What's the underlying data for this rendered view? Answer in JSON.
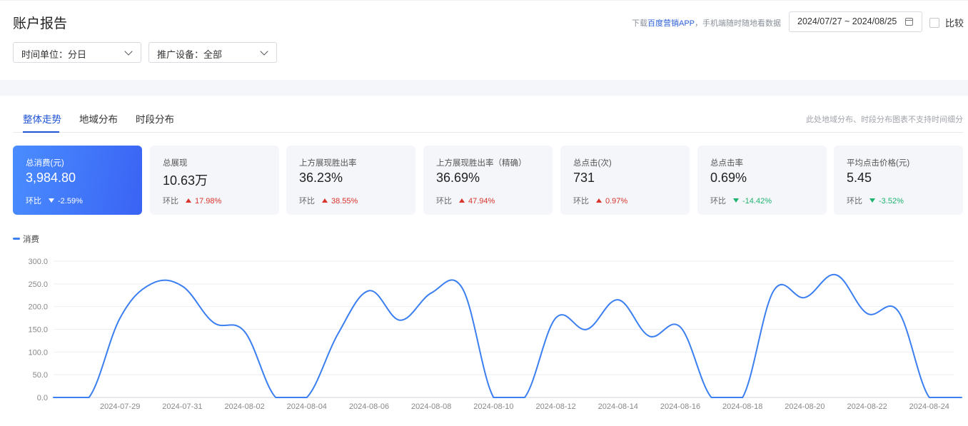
{
  "header": {
    "title": "账户报告",
    "app_tip_prefix": "下载",
    "app_tip_link": "百度营销APP",
    "app_tip_suffix": "，手机端随时随地看数据",
    "date_range": "2024/07/27 ~ 2024/08/25",
    "compare_label": "比较"
  },
  "filters": {
    "time_unit": "时间单位：分日",
    "device": "推广设备：全部"
  },
  "tabs": {
    "items": [
      "整体走势",
      "地域分布",
      "时段分布"
    ],
    "note": "此处地域分布、时段分布图表不支持时间细分"
  },
  "metrics": [
    {
      "label": "总消费(元)",
      "value": "3,984.80",
      "cmp_label": "环比",
      "change": "-2.59%",
      "direction": "down"
    },
    {
      "label": "总展现",
      "value": "10.63万",
      "cmp_label": "环比",
      "change": "17.98%",
      "direction": "up"
    },
    {
      "label": "上方展现胜出率",
      "value": "36.23%",
      "cmp_label": "环比",
      "change": "38.55%",
      "direction": "up"
    },
    {
      "label": "上方展现胜出率（精确）",
      "value": "36.69%",
      "cmp_label": "环比",
      "change": "47.94%",
      "direction": "up"
    },
    {
      "label": "总点击(次)",
      "value": "731",
      "cmp_label": "环比",
      "change": "0.97%",
      "direction": "up"
    },
    {
      "label": "总点击率",
      "value": "0.69%",
      "cmp_label": "环比",
      "change": "-14.42%",
      "direction": "down"
    },
    {
      "label": "平均点击价格(元)",
      "value": "5.45",
      "cmp_label": "环比",
      "change": "-3.52%",
      "direction": "down"
    }
  ],
  "colors": {
    "accent": "#1f54d4",
    "line": "#3b7ff0",
    "up": "#d9342b",
    "down": "#1db36e"
  },
  "chart_data": {
    "type": "line",
    "legend": "消费",
    "legend_position": "top-left",
    "grid": true,
    "ylim": [
      0,
      300
    ],
    "yticks": [
      "0.0",
      "50.0",
      "100.0",
      "150.0",
      "200.0",
      "250.0",
      "300.0"
    ],
    "x": [
      "2024-07-27",
      "2024-07-28",
      "2024-07-29",
      "2024-07-30",
      "2024-07-31",
      "2024-08-01",
      "2024-08-02",
      "2024-08-03",
      "2024-08-04",
      "2024-08-05",
      "2024-08-06",
      "2024-08-07",
      "2024-08-08",
      "2024-08-09",
      "2024-08-10",
      "2024-08-11",
      "2024-08-12",
      "2024-08-13",
      "2024-08-14",
      "2024-08-15",
      "2024-08-16",
      "2024-08-17",
      "2024-08-18",
      "2024-08-19",
      "2024-08-20",
      "2024-08-21",
      "2024-08-22",
      "2024-08-23",
      "2024-08-24",
      "2024-08-25"
    ],
    "xticks": [
      "2024-07-29",
      "2024-07-31",
      "2024-08-02",
      "2024-08-04",
      "2024-08-06",
      "2024-08-08",
      "2024-08-10",
      "2024-08-12",
      "2024-08-14",
      "2024-08-16",
      "2024-08-18",
      "2024-08-20",
      "2024-08-22",
      "2024-08-24"
    ],
    "series": [
      {
        "name": "消费",
        "values": [
          0,
          0,
          175,
          250,
          245,
          165,
          145,
          0,
          0,
          140,
          235,
          170,
          230,
          240,
          0,
          0,
          175,
          150,
          215,
          135,
          155,
          0,
          0,
          235,
          220,
          270,
          185,
          190,
          0,
          0
        ]
      }
    ]
  }
}
